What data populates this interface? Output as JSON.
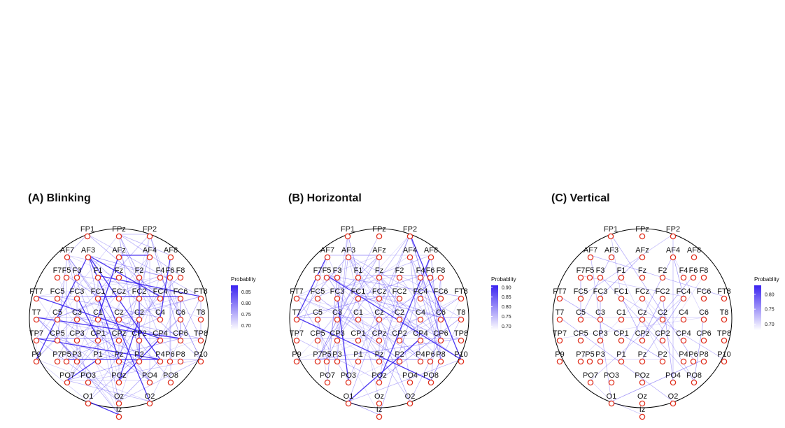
{
  "panels": [
    {
      "title": "(A) Blinking",
      "legend": {
        "title": "Probablity",
        "ticks": [
          "0.85",
          "0.80",
          "0.75",
          "0.70"
        ],
        "min": 0.68,
        "max": 0.88
      },
      "seed": 11,
      "edge_count": 150
    },
    {
      "title": "(B) Horizontal",
      "legend": {
        "title": "Probablity",
        "ticks": [
          "0.90",
          "0.85",
          "0.80",
          "0.75",
          "0.70"
        ],
        "min": 0.68,
        "max": 0.91
      },
      "seed": 23,
      "edge_count": 135
    },
    {
      "title": "(C) Vertical",
      "legend": {
        "title": "Probablity",
        "ticks": [
          "0.80",
          "0.75",
          "0.70"
        ],
        "min": 0.68,
        "max": 0.83
      },
      "seed": 37,
      "edge_count": 40
    }
  ],
  "electrodes": {
    "FP1": [
      0,
      0
    ],
    "FPz": [
      0,
      0
    ],
    "FP2": [
      0,
      0
    ],
    "AF7": [
      0,
      0
    ],
    "AF3": [
      0,
      0
    ],
    "AFz": [
      0,
      0
    ],
    "AF4": [
      0,
      0
    ],
    "AF8": [
      0,
      0
    ],
    "F7": [
      0,
      0
    ],
    "F5": [
      0,
      0
    ],
    "F3": [
      0,
      0
    ],
    "F1": [
      0,
      0
    ],
    "Fz": [
      0,
      0
    ],
    "F2": [
      0,
      0
    ],
    "F4": [
      0,
      0
    ],
    "F6": [
      0,
      0
    ],
    "F8": [
      0,
      0
    ],
    "FT7": [
      0,
      0
    ],
    "FC5": [
      0,
      0
    ],
    "FC3": [
      0,
      0
    ],
    "FC1": [
      0,
      0
    ],
    "FCz": [
      0,
      0
    ],
    "FC2": [
      0,
      0
    ],
    "FC4": [
      0,
      0
    ],
    "FC6": [
      0,
      0
    ],
    "FT8": [
      0,
      0
    ],
    "T7": [
      0,
      0
    ],
    "C5": [
      0,
      0
    ],
    "C3": [
      0,
      0
    ],
    "C1": [
      0,
      0
    ],
    "Cz": [
      0,
      0
    ],
    "C2": [
      0,
      0
    ],
    "C4": [
      0,
      0
    ],
    "C6": [
      0,
      0
    ],
    "T8": [
      0,
      0
    ],
    "TP7": [
      0,
      0
    ],
    "CP5": [
      0,
      0
    ],
    "CP3": [
      0,
      0
    ],
    "CP1": [
      0,
      0
    ],
    "CPz": [
      0,
      0
    ],
    "CP2": [
      0,
      0
    ],
    "CP4": [
      0,
      0
    ],
    "CP6": [
      0,
      0
    ],
    "TP8": [
      0,
      0
    ],
    "P9": [
      0,
      0
    ],
    "P7": [
      0,
      0
    ],
    "P5": [
      0,
      0
    ],
    "P3": [
      0,
      0
    ],
    "P1": [
      0,
      0
    ],
    "Pz": [
      0,
      0
    ],
    "P2": [
      0,
      0
    ],
    "P4": [
      0,
      0
    ],
    "P6": [
      0,
      0
    ],
    "P8": [
      0,
      0
    ],
    "P10": [
      0,
      0
    ],
    "PO7": [
      0,
      0
    ],
    "PO3": [
      0,
      0
    ],
    "POz": [
      0,
      0
    ],
    "PO4": [
      0,
      0
    ],
    "PO8": [
      0,
      0
    ],
    "O1": [
      0,
      0
    ],
    "Oz": [
      0,
      0
    ],
    "O2": [
      0,
      0
    ],
    "Iz": [
      0,
      0
    ]
  },
  "colors": {
    "edge": "#3a22f0",
    "node_stroke": "#e0301e",
    "head": "#000000"
  }
}
